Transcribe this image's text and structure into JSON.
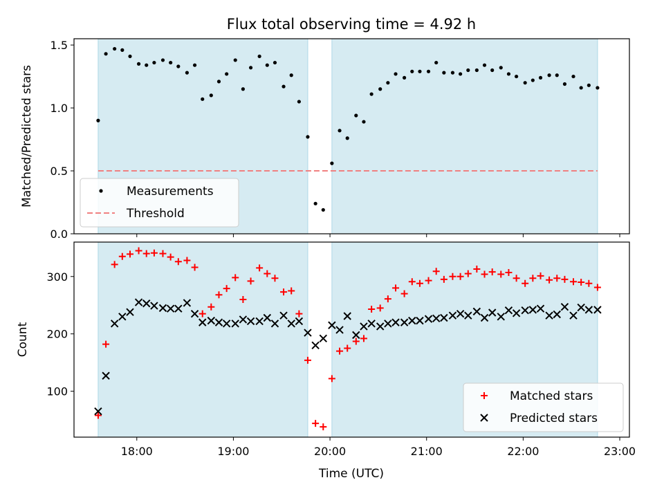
{
  "chart_data": {
    "type": "scatter",
    "title": "Flux total observing time = 4.92 h",
    "xlabel": "Time (UTC)",
    "x_ticks": [
      "18:00",
      "19:00",
      "20:00",
      "21:00",
      "22:00",
      "23:00"
    ],
    "x_range_hours": [
      17.35,
      23.1
    ],
    "shaded_intervals_hours": [
      [
        17.6,
        19.77
      ],
      [
        20.02,
        22.77
      ]
    ],
    "shade_color": "#add8e6",
    "panels": [
      {
        "ylabel": "Matched/Predicted stars",
        "ylim": [
          0,
          1.55
        ],
        "yticks": [
          "0.0",
          "0.5",
          "1.0",
          "1.5"
        ],
        "threshold": 0.5,
        "legend_placement": "lower-left",
        "series": [
          {
            "name": "Measurements",
            "marker": "dot",
            "color": "#000000",
            "x": [
              17.6,
              17.68,
              17.77,
              17.85,
              17.93,
              18.02,
              18.1,
              18.18,
              18.27,
              18.35,
              18.43,
              18.52,
              18.6,
              18.68,
              18.77,
              18.85,
              18.93,
              19.02,
              19.1,
              19.18,
              19.27,
              19.35,
              19.43,
              19.52,
              19.6,
              19.68,
              19.77,
              19.85,
              19.93,
              20.02,
              20.1,
              20.18,
              20.27,
              20.35,
              20.43,
              20.52,
              20.6,
              20.68,
              20.77,
              20.85,
              20.93,
              21.02,
              21.1,
              21.18,
              21.27,
              21.35,
              21.43,
              21.52,
              21.6,
              21.68,
              21.77,
              21.85,
              21.93,
              22.02,
              22.1,
              22.18,
              22.27,
              22.35,
              22.43,
              22.52,
              22.6,
              22.68,
              22.77
            ],
            "y": [
              0.9,
              1.43,
              1.47,
              1.46,
              1.41,
              1.35,
              1.34,
              1.36,
              1.38,
              1.36,
              1.33,
              1.28,
              1.34,
              1.07,
              1.1,
              1.21,
              1.27,
              1.38,
              1.15,
              1.32,
              1.41,
              1.34,
              1.36,
              1.17,
              1.26,
              1.05,
              0.77,
              0.24,
              0.19,
              0.56,
              0.82,
              0.76,
              0.94,
              0.89,
              1.11,
              1.15,
              1.2,
              1.27,
              1.24,
              1.29,
              1.29,
              1.29,
              1.36,
              1.28,
              1.28,
              1.27,
              1.3,
              1.3,
              1.34,
              1.3,
              1.32,
              1.27,
              1.25,
              1.2,
              1.22,
              1.24,
              1.26,
              1.26,
              1.19,
              1.25,
              1.16,
              1.18,
              1.16
            ]
          },
          {
            "name": "Threshold",
            "marker": "dashed-line",
            "color": "#f08080"
          }
        ]
      },
      {
        "ylabel": "Count",
        "ylim": [
          20,
          360
        ],
        "yticks": [
          "100",
          "200",
          "300"
        ],
        "legend_placement": "lower-right",
        "series": [
          {
            "name": "Matched stars",
            "marker": "plus",
            "color": "#ff0000",
            "x": [
              17.6,
              17.68,
              17.77,
              17.85,
              17.93,
              18.02,
              18.1,
              18.18,
              18.27,
              18.35,
              18.43,
              18.52,
              18.6,
              18.68,
              18.77,
              18.85,
              18.93,
              19.02,
              19.1,
              19.18,
              19.27,
              19.35,
              19.43,
              19.52,
              19.6,
              19.68,
              19.77,
              19.85,
              19.93,
              20.02,
              20.1,
              20.18,
              20.27,
              20.35,
              20.43,
              20.52,
              20.6,
              20.68,
              20.77,
              20.85,
              20.93,
              21.02,
              21.1,
              21.18,
              21.27,
              21.35,
              21.43,
              21.52,
              21.6,
              21.68,
              21.77,
              21.85,
              21.93,
              22.02,
              22.1,
              22.18,
              22.27,
              22.35,
              22.43,
              22.52,
              22.6,
              22.68,
              22.77
            ],
            "y": [
              58,
              182,
              321,
              335,
              339,
              345,
              340,
              341,
              340,
              334,
              326,
              328,
              316,
              235,
              247,
              268,
              279,
              298,
              260,
              292,
              315,
              305,
              297,
              273,
              275,
              235,
              154,
              44,
              38,
              122,
              170,
              175,
              187,
              192,
              243,
              245,
              261,
              280,
              270,
              291,
              288,
              293,
              309,
              295,
              300,
              300,
              305,
              313,
              304,
              308,
              304,
              307,
              297,
              288,
              297,
              301,
              294,
              297,
              295,
              291,
              290,
              288,
              281
            ]
          },
          {
            "name": "Predicted stars",
            "marker": "x",
            "color": "#000000",
            "x": [
              17.6,
              17.68,
              17.77,
              17.85,
              17.93,
              18.02,
              18.1,
              18.18,
              18.27,
              18.35,
              18.43,
              18.52,
              18.6,
              18.68,
              18.77,
              18.85,
              18.93,
              19.02,
              19.1,
              19.18,
              19.27,
              19.35,
              19.43,
              19.52,
              19.6,
              19.68,
              19.77,
              19.85,
              19.93,
              20.02,
              20.1,
              20.18,
              20.27,
              20.35,
              20.43,
              20.52,
              20.6,
              20.68,
              20.77,
              20.85,
              20.93,
              21.02,
              21.1,
              21.18,
              21.27,
              21.35,
              21.43,
              21.52,
              21.6,
              21.68,
              21.77,
              21.85,
              21.93,
              22.02,
              22.1,
              22.18,
              22.27,
              22.35,
              22.43,
              22.52,
              22.6,
              22.68,
              22.77
            ],
            "y": [
              65,
              127,
              218,
              230,
              238,
              255,
              253,
              249,
              245,
              244,
              244,
              254,
              235,
              220,
              223,
              220,
              218,
              218,
              225,
              222,
              222,
              228,
              218,
              232,
              218,
              222,
              202,
              180,
              192,
              215,
              207,
              231,
              198,
              213,
              218,
              213,
              218,
              220,
              220,
              223,
              223,
              226,
              227,
              228,
              232,
              235,
              232,
              239,
              228,
              237,
              230,
              241,
              236,
              241,
              242,
              244,
              232,
              234,
              247,
              232,
              246,
              242,
              242
            ]
          }
        ]
      }
    ]
  }
}
